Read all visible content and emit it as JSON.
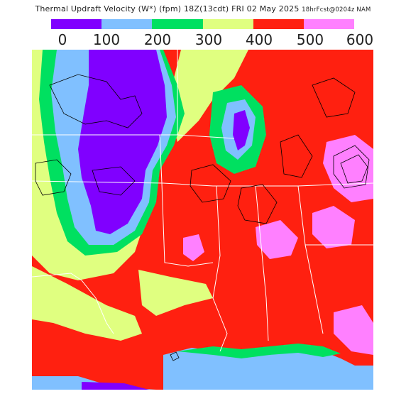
{
  "title": {
    "main": "Thermal Updraft Velocity (W*)  (fpm)  18Z(13cdt) FRI 02 May 2025",
    "sub": "18hrFcst@0204z NAM"
  },
  "legend": {
    "colors": [
      "#8000ff",
      "#80c0ff",
      "#00e060",
      "#e0ff80",
      "#ff2010",
      "#ff80ff"
    ],
    "ticks": [
      "0",
      "100",
      "200",
      "300",
      "400",
      "500",
      "600"
    ]
  },
  "map": {
    "region": "south-central United States",
    "palette": {
      "purple": "#8000ff",
      "lightblue": "#80c0ff",
      "green": "#00e060",
      "yellow": "#e0ff80",
      "red": "#ff2010",
      "pink": "#ff80ff",
      "gulf": "#80c0ff",
      "boundary": "#ffffff",
      "contour": "#000000"
    }
  }
}
